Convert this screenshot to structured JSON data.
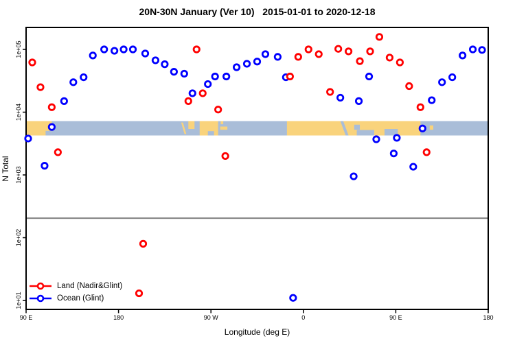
{
  "title": "20N-30N January (Ver 10)   2015-01-01 to 2020-12-18",
  "axes": {
    "x": {
      "label": "Longitude (deg E)"
    },
    "y": {
      "label": "N Total"
    }
  },
  "legend": {
    "items": [
      {
        "label": "Land (Nadir&Glint)",
        "series": "land"
      },
      {
        "label": "Ocean (Glint)",
        "series": "ocean"
      }
    ]
  },
  "colors": {
    "land_series": "#ff0000",
    "ocean_series": "#0000ff",
    "band_land": "#f9d37c",
    "band_ocean": "#a9bdd8",
    "reference_line": "#8c8c8c",
    "axis": "#000000"
  },
  "chart_data": {
    "type": "scatter",
    "title": "20N-30N January (Ver 10)   2015-01-01 to 2020-12-18",
    "xlabel": "Longitude (deg E)",
    "ylabel": "N Total",
    "x_axis": {
      "domain": [
        90,
        540
      ],
      "note": "longitude in deg E wrapping past 180 through 360(=0) to 540(=180)",
      "ticks": [
        {
          "value": 90,
          "label": "90 E"
        },
        {
          "value": 180,
          "label": "180"
        },
        {
          "value": 270,
          "label": "90 W"
        },
        {
          "value": 360,
          "label": "0"
        },
        {
          "value": 450,
          "label": "90 E"
        },
        {
          "value": 540,
          "label": "180"
        }
      ]
    },
    "y_axis": {
      "scale": "log10",
      "ticks": [
        {
          "value": 100000,
          "label": "1e+05"
        },
        {
          "value": 10000,
          "label": "1e+04"
        },
        {
          "value": 1000,
          "label": "1e+03"
        },
        {
          "value": 100,
          "label": "1e+02"
        },
        {
          "value": 10,
          "label": "1e+01"
        }
      ]
    },
    "reference_line": {
      "n": 205
    },
    "series": [
      {
        "name": "Ocean (Glint)",
        "key": "ocean",
        "points": [
          {
            "lon": 92,
            "n": 3800
          },
          {
            "lon": 108,
            "n": 1400
          },
          {
            "lon": 115,
            "n": 5800
          },
          {
            "lon": 127,
            "n": 15000
          },
          {
            "lon": 136,
            "n": 30000
          },
          {
            "lon": 146,
            "n": 36000
          },
          {
            "lon": 155,
            "n": 80000
          },
          {
            "lon": 166,
            "n": 100000
          },
          {
            "lon": 176,
            "n": 95000
          },
          {
            "lon": 185,
            "n": 100000
          },
          {
            "lon": 194,
            "n": 100000
          },
          {
            "lon": 206,
            "n": 86000
          },
          {
            "lon": 216,
            "n": 67000
          },
          {
            "lon": 225,
            "n": 58000
          },
          {
            "lon": 234,
            "n": 44000
          },
          {
            "lon": 244,
            "n": 41000
          },
          {
            "lon": 252,
            "n": 20000
          },
          {
            "lon": 267,
            "n": 28000
          },
          {
            "lon": 274,
            "n": 37000
          },
          {
            "lon": 285,
            "n": 37000
          },
          {
            "lon": 295,
            "n": 52000
          },
          {
            "lon": 305,
            "n": 59000
          },
          {
            "lon": 315,
            "n": 64000
          },
          {
            "lon": 323,
            "n": 84000
          },
          {
            "lon": 335,
            "n": 76000
          },
          {
            "lon": 343,
            "n": 36000
          },
          {
            "lon": 350,
            "n": 11
          },
          {
            "lon": 396,
            "n": 17000
          },
          {
            "lon": 409,
            "n": 950
          },
          {
            "lon": 414,
            "n": 15000
          },
          {
            "lon": 424,
            "n": 37000
          },
          {
            "lon": 431,
            "n": 3700
          },
          {
            "lon": 448,
            "n": 2200
          },
          {
            "lon": 451,
            "n": 3900
          },
          {
            "lon": 467,
            "n": 1350
          },
          {
            "lon": 476,
            "n": 5500
          },
          {
            "lon": 485,
            "n": 15500
          },
          {
            "lon": 495,
            "n": 30000
          },
          {
            "lon": 505,
            "n": 36000
          },
          {
            "lon": 515,
            "n": 80000
          },
          {
            "lon": 525,
            "n": 100000
          },
          {
            "lon": 534,
            "n": 98000
          }
        ]
      },
      {
        "name": "Land (Nadir&Glint)",
        "key": "land",
        "points": [
          {
            "lon": 96,
            "n": 62000
          },
          {
            "lon": 104,
            "n": 25000
          },
          {
            "lon": 115,
            "n": 12000
          },
          {
            "lon": 121,
            "n": 2300
          },
          {
            "lon": 200,
            "n": 13
          },
          {
            "lon": 204,
            "n": 80
          },
          {
            "lon": 248,
            "n": 15000
          },
          {
            "lon": 256,
            "n": 100000
          },
          {
            "lon": 262,
            "n": 20000
          },
          {
            "lon": 277,
            "n": 11000
          },
          {
            "lon": 284,
            "n": 2000
          },
          {
            "lon": 347,
            "n": 37000
          },
          {
            "lon": 355,
            "n": 76000
          },
          {
            "lon": 365,
            "n": 100000
          },
          {
            "lon": 375,
            "n": 84000
          },
          {
            "lon": 386,
            "n": 21000
          },
          {
            "lon": 394,
            "n": 102000
          },
          {
            "lon": 404,
            "n": 93000
          },
          {
            "lon": 415,
            "n": 65000
          },
          {
            "lon": 425,
            "n": 93000
          },
          {
            "lon": 434,
            "n": 158000
          },
          {
            "lon": 444,
            "n": 74000
          },
          {
            "lon": 454,
            "n": 62000
          },
          {
            "lon": 463,
            "n": 26000
          },
          {
            "lon": 474,
            "n": 12000
          },
          {
            "lon": 480,
            "n": 2300
          }
        ]
      }
    ],
    "map_band": {
      "description": "world coastline strip for 20N-30N latitude drawn across plot",
      "land_segments": [
        {
          "from": 90,
          "to": 115,
          "top": 0,
          "bottom": 1
        },
        {
          "from": 241,
          "to": 246,
          "top": 0.1,
          "bottom": 0.9,
          "slant": true
        },
        {
          "from": 248,
          "to": 254,
          "top": 0,
          "bottom": 0.55
        },
        {
          "from": 259,
          "to": 277,
          "top": 0,
          "bottom": 1
        },
        {
          "from": 279,
          "to": 286,
          "top": 0.38,
          "bottom": 0.6
        },
        {
          "from": 279.5,
          "to": 282,
          "top": 0,
          "bottom": 0.22
        },
        {
          "from": 344,
          "to": 474,
          "top": 0,
          "bottom": 1
        },
        {
          "from": 483,
          "to": 486.5,
          "top": 0.3,
          "bottom": 0.6
        }
      ],
      "ocean_notches": [
        {
          "from": 109,
          "to": 115,
          "top": 0.68,
          "bottom": 1
        },
        {
          "from": 267,
          "to": 273,
          "top": 0.7,
          "bottom": 1
        },
        {
          "from": 396,
          "to": 404,
          "top": 0,
          "bottom": 1,
          "slant": true
        },
        {
          "from": 409.5,
          "to": 415,
          "top": 0.25,
          "bottom": 0.6
        },
        {
          "from": 412,
          "to": 429,
          "top": 0.62,
          "bottom": 1
        },
        {
          "from": 439,
          "to": 452,
          "top": 0.55,
          "bottom": 1
        }
      ]
    }
  }
}
